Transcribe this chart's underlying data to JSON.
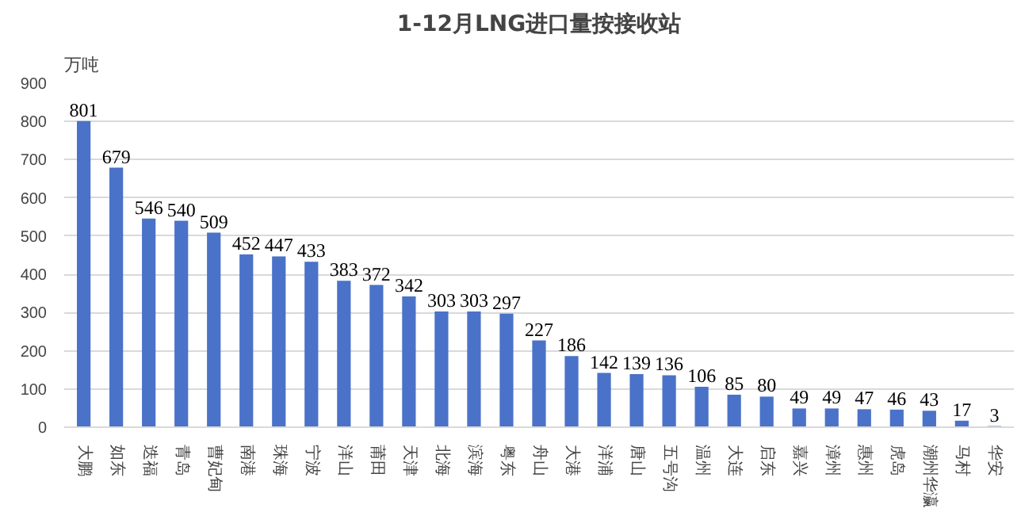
{
  "chart_data": {
    "type": "bar",
    "title": "1-12月LNG进口量按接收站",
    "ylabel": "万吨",
    "categories": [
      "大鹏",
      "如东",
      "迭福",
      "青岛",
      "曹妃甸",
      "南港",
      "珠海",
      "宁波",
      "洋山",
      "莆田",
      "天津",
      "北海",
      "滨海",
      "粤东",
      "舟山",
      "大港",
      "洋浦",
      "唐山",
      "五号沟",
      "温州",
      "大连",
      "启东",
      "嘉兴",
      "漳州",
      "惠州",
      "虎岛",
      "潮州华瀛",
      "马村",
      "华安"
    ],
    "values": [
      801,
      679,
      546,
      540,
      509,
      452,
      447,
      433,
      383,
      372,
      342,
      303,
      303,
      297,
      227,
      186,
      142,
      139,
      136,
      106,
      85,
      80,
      49,
      49,
      47,
      46,
      43,
      17,
      3
    ],
    "color": "#4a72c8",
    "ylim": [
      0,
      900
    ],
    "yticks": [
      0,
      100,
      200,
      300,
      400,
      500,
      600,
      700,
      800,
      900
    ],
    "grid": "y",
    "data_labels": true
  }
}
